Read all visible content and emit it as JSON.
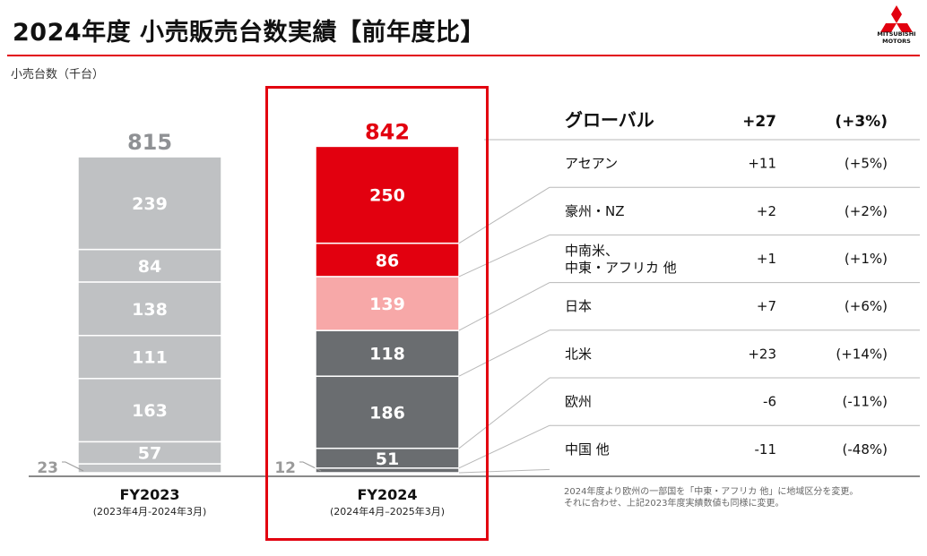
{
  "title": "2024年度 小売販売台数実績【前年度比】",
  "unit_label": "小売台数（千台）",
  "logo": {
    "text_line1": "MITSUBISHI",
    "text_line2": "MOTORS",
    "color": "#e2000f"
  },
  "colors": {
    "accent": "#e2000f",
    "fy2023_bar": "#bfc1c3",
    "dark_gray": "#6a6d70",
    "pink": "#f7a8a8",
    "text_gray": "#9a9a9a"
  },
  "periods": [
    {
      "label": "FY2023",
      "sub": "(2023年4月-2024年3月)"
    },
    {
      "label": "FY2024",
      "sub": "(2024年4月–2025年3月)"
    }
  ],
  "chart_data": {
    "type": "bar",
    "stacked": true,
    "categories": [
      "FY2023",
      "FY2024"
    ],
    "totals": [
      815,
      842
    ],
    "series": [
      {
        "name": "アセアン",
        "values": [
          239,
          250
        ]
      },
      {
        "name": "豪州・NZ",
        "values": [
          84,
          86
        ]
      },
      {
        "name": "中南米、中東・アフリカ 他",
        "values": [
          138,
          139
        ]
      },
      {
        "name": "日本",
        "values": [
          111,
          118
        ]
      },
      {
        "name": "北米",
        "values": [
          163,
          186
        ]
      },
      {
        "name": "欧州",
        "values": [
          57,
          51
        ]
      },
      {
        "name": "中国 他",
        "values": [
          23,
          12
        ]
      }
    ],
    "ylabel": "小売台数（千台）"
  },
  "table": {
    "header": {
      "label": "グローバル",
      "diff": "+27",
      "pct": "(+3%)"
    },
    "rows": [
      {
        "label": "アセアン",
        "diff": "+11",
        "pct": "(+5%)"
      },
      {
        "label": "豪州・NZ",
        "diff": "+2",
        "pct": "(+2%)"
      },
      {
        "label": "中南米、\n中東・アフリカ 他",
        "diff": "+1",
        "pct": "(+1%)"
      },
      {
        "label": "日本",
        "diff": "+7",
        "pct": "(+6%)"
      },
      {
        "label": "北米",
        "diff": "+23",
        "pct": "(+14%)"
      },
      {
        "label": "欧州",
        "diff": "-6",
        "pct": "(-11%)"
      },
      {
        "label": "中国 他",
        "diff": "-11",
        "pct": "(-48%)"
      }
    ]
  },
  "note_lines": [
    "2024年度より欧州の一部国を「中東・アフリカ 他」に地域区分を変更。",
    "それに合わせ、上記2023年度実績数値も同様に変更。"
  ]
}
